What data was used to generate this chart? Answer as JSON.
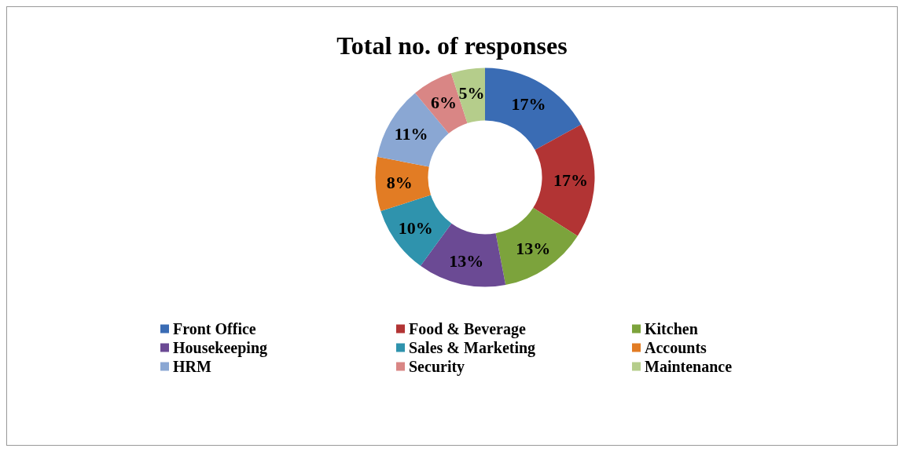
{
  "chart_data": {
    "type": "donut",
    "title": "Total no. of responses",
    "categories": [
      "Front Office",
      "Food & Beverage",
      "Kitchen",
      "Housekeeping",
      "Sales & Marketing",
      "Accounts",
      "HRM",
      "Security",
      "Maintenance"
    ],
    "values": [
      17,
      17,
      13,
      13,
      10,
      8,
      11,
      6,
      5
    ],
    "colors": [
      "#3a6cb4",
      "#b23434",
      "#7ca33c",
      "#6b4a94",
      "#2f93ad",
      "#e27c24",
      "#8aa7d3",
      "#d98685",
      "#b5cd8b"
    ],
    "value_labels": [
      "17%",
      "17%",
      "13%",
      "13%",
      "10%",
      "8%",
      "11%",
      "6%",
      "5%"
    ],
    "legend": "bottom"
  }
}
